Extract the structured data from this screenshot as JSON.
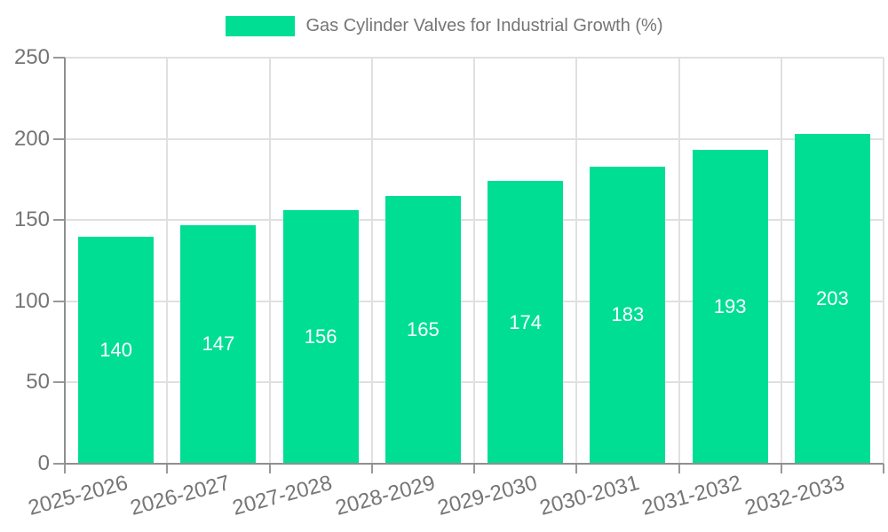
{
  "legend": {
    "label": "Gas Cylinder Valves for Industrial Growth (%)"
  },
  "chart_data": {
    "type": "bar",
    "title": "Gas Cylinder Valves for Industrial Growth (%)",
    "categories": [
      "2025-2026",
      "2026-2027",
      "2027-2028",
      "2028-2029",
      "2029-2030",
      "2030-2031",
      "2031-2032",
      "2032-2033"
    ],
    "values": [
      140,
      147,
      156,
      165,
      174,
      183,
      193,
      203
    ],
    "bar_labels": [
      "140",
      "147",
      "156",
      "165",
      "174",
      "183",
      "193",
      "203"
    ],
    "xlabel": "",
    "ylabel": "",
    "ylim": [
      0,
      250
    ],
    "yticks": [
      0,
      50,
      100,
      150,
      200,
      250
    ],
    "grid": "both",
    "legend_position": "top-center",
    "x_tick_rotation_deg": -15,
    "colors": {
      "bar": "#00DE94",
      "bar_label": "#FFFFFF",
      "grid": "#E0E0E0",
      "axis": "#8F8F8F",
      "tick": "#999999",
      "tick_label": "#757575",
      "legend_text": "#757575",
      "background": "#FFFFFF"
    }
  }
}
